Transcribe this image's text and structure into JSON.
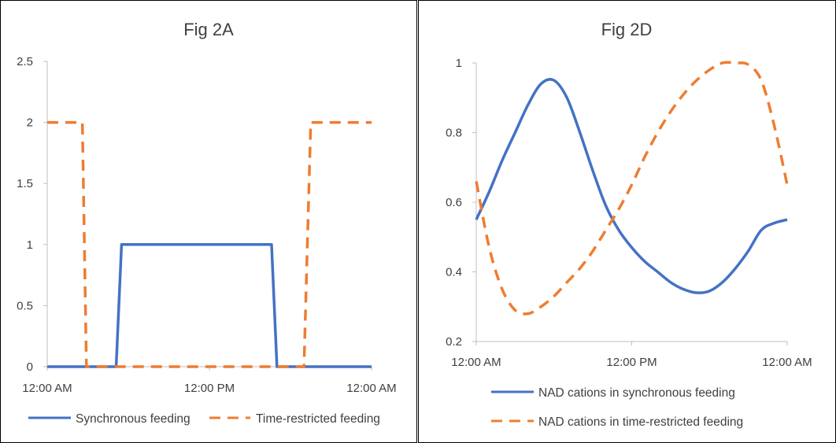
{
  "colors": {
    "series_a": "#4472C4",
    "series_b": "#ED7D31",
    "axis": "#BFBFBF",
    "text": "#404040",
    "border": "#000000"
  },
  "chart_data": [
    {
      "type": "line",
      "title": "Fig 2A",
      "xlabel": "",
      "ylabel": "",
      "xlim": [
        0,
        24
      ],
      "ylim": [
        0,
        2.5
      ],
      "y_ticks": [
        "0",
        "0.5",
        "1",
        "1.5",
        "2",
        "2.5"
      ],
      "x_ticks": [
        "12:00 AM",
        "12:00 PM",
        "12:00 AM"
      ],
      "grid": false,
      "legend_position": "bottom",
      "series": [
        {
          "name": "Synchronous feeding",
          "style": "solid",
          "x": [
            0,
            5.1,
            5.5,
            16.6,
            17.0,
            24
          ],
          "y": [
            0,
            0,
            1,
            1,
            0,
            0
          ]
        },
        {
          "name": "Time-restricted feeding",
          "style": "dashed",
          "x": [
            0,
            2.6,
            2.9,
            19.0,
            19.5,
            24
          ],
          "y": [
            2,
            2,
            0,
            0,
            2,
            2
          ]
        }
      ]
    },
    {
      "type": "line",
      "title": "Fig 2D",
      "xlabel": "",
      "ylabel": "",
      "xlim": [
        0,
        24
      ],
      "ylim": [
        0.2,
        1
      ],
      "y_ticks": [
        "0.2",
        "0.4",
        "0.6",
        "0.8",
        "1"
      ],
      "x_ticks": [
        "12:00 AM",
        "12:00 PM",
        "12:00 AM"
      ],
      "grid": false,
      "legend_position": "bottom",
      "series": [
        {
          "name": "NAD cations in synchronous feeding",
          "style": "solid",
          "x": [
            0,
            1,
            2,
            3,
            4,
            5,
            6,
            7,
            8,
            9,
            10,
            11,
            12,
            13,
            14,
            15,
            16,
            17,
            18,
            19,
            20,
            21,
            22,
            23,
            24
          ],
          "y": [
            0.55,
            0.63,
            0.72,
            0.8,
            0.88,
            0.94,
            0.95,
            0.9,
            0.8,
            0.69,
            0.59,
            0.52,
            0.47,
            0.43,
            0.4,
            0.37,
            0.35,
            0.34,
            0.345,
            0.37,
            0.41,
            0.46,
            0.52,
            0.54,
            0.55
          ]
        },
        {
          "name": "NAD cations in time-restricted feeding",
          "style": "dashed",
          "x": [
            0,
            1,
            2,
            3,
            4,
            5,
            6,
            7,
            8,
            9,
            10,
            11,
            12,
            13,
            14,
            15,
            16,
            17,
            18,
            19,
            20,
            21,
            22,
            23,
            24
          ],
          "y": [
            0.66,
            0.47,
            0.35,
            0.29,
            0.28,
            0.3,
            0.33,
            0.37,
            0.41,
            0.46,
            0.52,
            0.58,
            0.65,
            0.73,
            0.8,
            0.86,
            0.91,
            0.95,
            0.98,
            1.0,
            1.0,
            0.995,
            0.95,
            0.82,
            0.65
          ]
        }
      ]
    }
  ]
}
